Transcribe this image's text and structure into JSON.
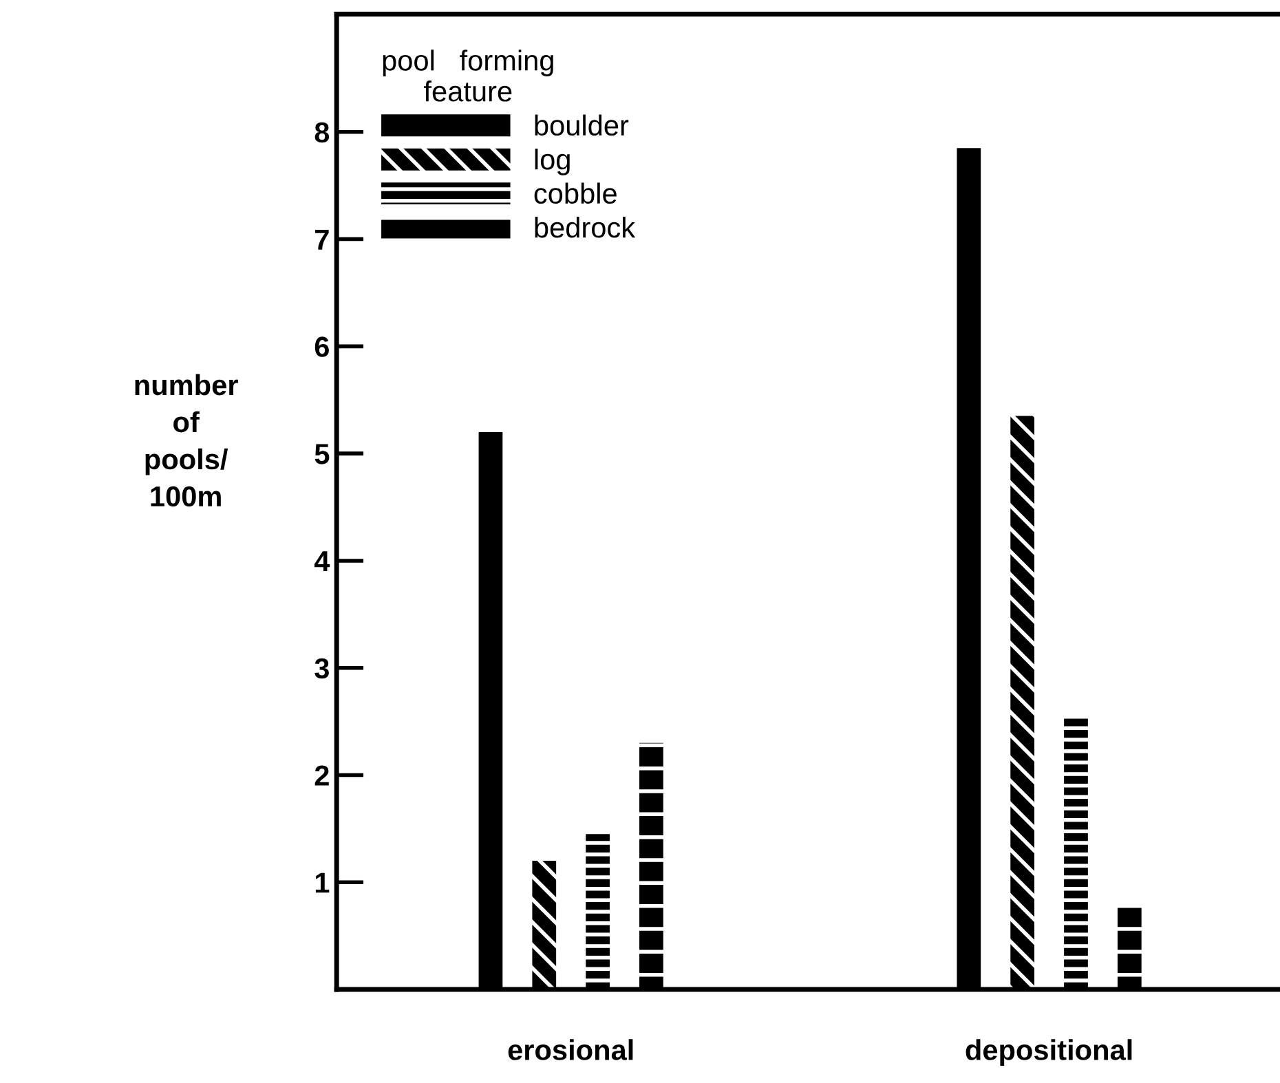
{
  "chart_data": {
    "type": "bar",
    "ylabel": "number\nof\npools/\n100m",
    "legend_title": "pool   forming\nfeature",
    "categories": [
      "erosional",
      "depositional"
    ],
    "series": [
      {
        "name": "boulder",
        "color": "#000000",
        "values": [
          5.2,
          7.85
        ]
      },
      {
        "name": "log",
        "color": "#000000",
        "values": [
          1.2,
          5.35
        ]
      },
      {
        "name": "cobble",
        "color": "#000000",
        "values": [
          1.45,
          2.55
        ]
      },
      {
        "name": "bedrock",
        "color": "#000000",
        "values": [
          2.3,
          0.77
        ]
      }
    ],
    "ylim": [
      0,
      9.1
    ],
    "yticks": [
      1,
      2,
      3,
      4,
      5,
      6,
      7,
      8
    ],
    "legend": "top left",
    "grid": false
  }
}
